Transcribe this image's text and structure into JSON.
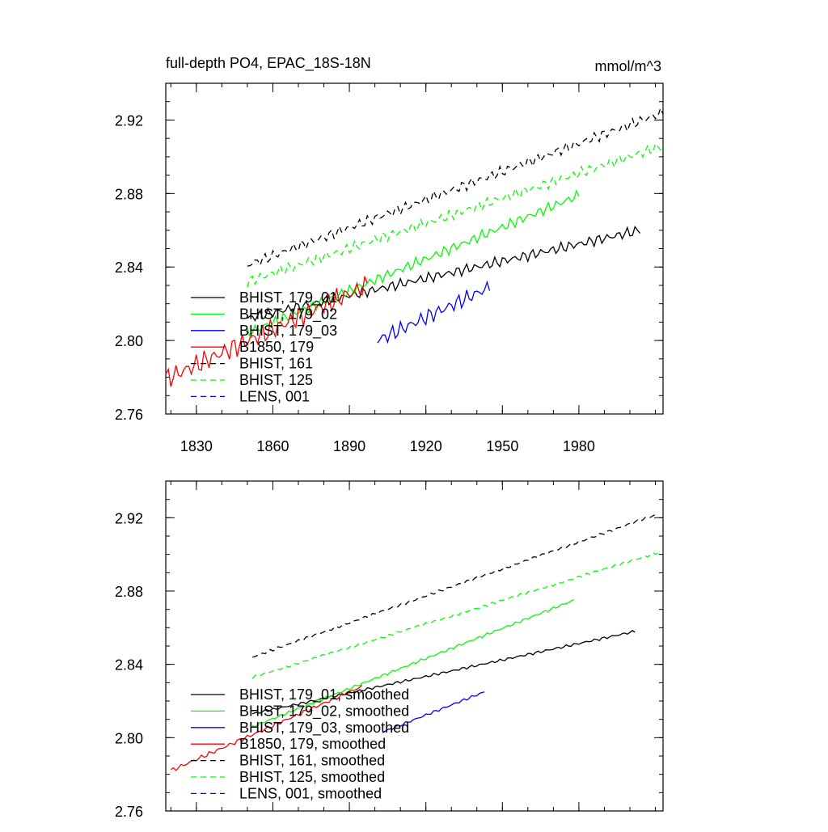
{
  "chart_data": [
    {
      "type": "line",
      "title": "full-depth PO4, EPAC_18S-18N",
      "units": "mmol/m^3",
      "xlim": [
        1818,
        2013
      ],
      "ylim": [
        2.76,
        2.94
      ],
      "xticks": [
        1830,
        1860,
        1890,
        1920,
        1950,
        1980
      ],
      "xtick_labels": [
        "1830",
        "1860",
        "1890",
        "1920",
        "1950",
        "1980"
      ],
      "yticks": [
        2.76,
        2.8,
        2.84,
        2.88,
        2.92
      ],
      "ytick_labels": [
        "2.76",
        "2.80",
        "2.84",
        "2.88",
        "2.92"
      ],
      "legend_position": "bottom-left",
      "series": [
        {
          "name": "BHIST, 179_01",
          "color": "#000000",
          "dash": false,
          "x_start": 1850,
          "x_end": 2004,
          "y_start": 2.812,
          "y_end": 2.86,
          "noise": 0.002
        },
        {
          "name": "BHIST, 179_02",
          "color": "#00ff00",
          "dash": false,
          "x_start": 1850,
          "x_end": 1980,
          "y_start": 2.804,
          "y_end": 2.879,
          "noise": 0.002
        },
        {
          "name": "BHIST, 179_03",
          "color": "#0000ff",
          "dash": false,
          "x_start": 1901,
          "x_end": 1945,
          "y_start": 2.8,
          "y_end": 2.829,
          "noise": 0.003
        },
        {
          "name": "B1850, 179",
          "color": "#ff0000",
          "dash": false,
          "x_start": 1818,
          "x_end": 1897,
          "y_start": 2.779,
          "y_end": 2.83,
          "noise": 0.004
        },
        {
          "name": "BHIST, 161",
          "color": "#000000",
          "dash": true,
          "x_start": 1850,
          "x_end": 2013,
          "y_start": 2.841,
          "y_end": 2.924,
          "noise": 0.002
        },
        {
          "name": "BHIST, 125",
          "color": "#00ff00",
          "dash": true,
          "x_start": 1850,
          "x_end": 2013,
          "y_start": 2.832,
          "y_end": 2.906,
          "noise": 0.002
        },
        {
          "name": "LENS, 001",
          "color": "#0000ff",
          "dash": true,
          "x_start": null,
          "x_end": null,
          "y_start": null,
          "y_end": null,
          "noise": 0
        }
      ]
    },
    {
      "type": "line",
      "title": "",
      "units": "",
      "xlim": [
        1818,
        2013
      ],
      "ylim": [
        2.76,
        2.94
      ],
      "xticks": [
        1830,
        1860,
        1890,
        1920,
        1950,
        1980
      ],
      "xtick_labels": [],
      "yticks": [
        2.76,
        2.8,
        2.84,
        2.88,
        2.92
      ],
      "ytick_labels": [
        "2.76",
        "2.80",
        "2.84",
        "2.88",
        "2.92"
      ],
      "legend_position": "bottom-left",
      "series": [
        {
          "name": "BHIST, 179_01, smoothed",
          "color": "#000000",
          "dash": false,
          "x_start": 1852,
          "x_end": 2002,
          "y_start": 2.813,
          "y_end": 2.858,
          "noise": 0.0005
        },
        {
          "name": "BHIST, 179_02, smoothed",
          "color": "#00ff00",
          "dash": false,
          "x_start": 1852,
          "x_end": 1978,
          "y_start": 2.806,
          "y_end": 2.875,
          "noise": 0.0005
        },
        {
          "name": "BHIST, 179_03, smoothed",
          "color": "#0000ff",
          "dash": false,
          "x_start": 1903,
          "x_end": 1943,
          "y_start": 2.803,
          "y_end": 2.825,
          "noise": 0.0005
        },
        {
          "name": "B1850, 179, smoothed",
          "color": "#ff0000",
          "dash": false,
          "x_start": 1820,
          "x_end": 1895,
          "y_start": 2.782,
          "y_end": 2.828,
          "noise": 0.0008
        },
        {
          "name": "BHIST, 161, smoothed",
          "color": "#000000",
          "dash": true,
          "x_start": 1852,
          "x_end": 2011,
          "y_start": 2.844,
          "y_end": 2.922,
          "noise": 0.0005
        },
        {
          "name": "BHIST, 125, smoothed",
          "color": "#00ff00",
          "dash": true,
          "x_start": 1852,
          "x_end": 2011,
          "y_start": 2.833,
          "y_end": 2.901,
          "noise": 0.0005
        },
        {
          "name": "LENS, 001, smoothed",
          "color": "#0000ff",
          "dash": true,
          "x_start": null,
          "x_end": null,
          "y_start": null,
          "y_end": null,
          "noise": 0
        }
      ]
    }
  ]
}
